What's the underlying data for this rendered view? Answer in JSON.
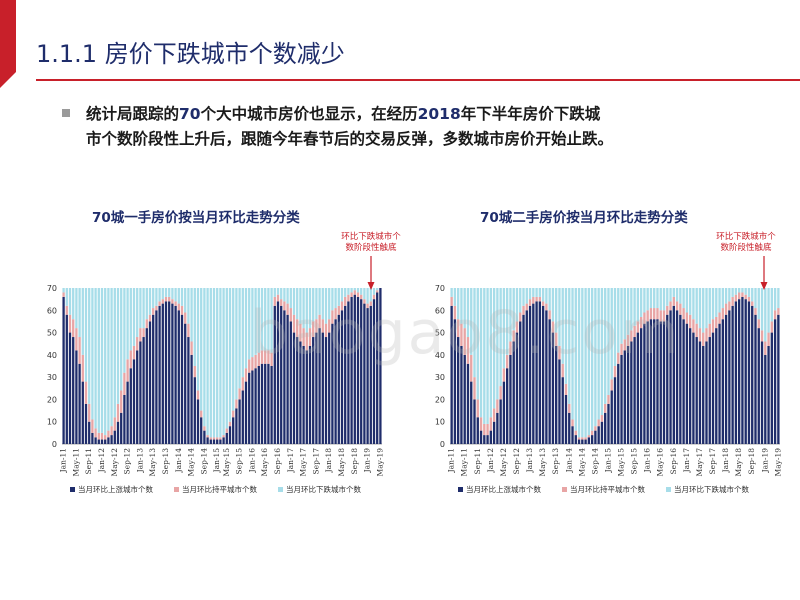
{
  "header": {
    "title": "1.1.1 房价下跌城市个数减少"
  },
  "intro": {
    "line1_pre": "统计局跟踪的",
    "line1_num": "70",
    "line1_mid": "个大中城市房价也显示，在经历",
    "line1_year": "2018",
    "line1_post": "年下半年房价下跌城",
    "line2": "市个数阶段性上升后，跟随今年春节后的交易反弹，多数城市房价开始止跌。"
  },
  "annotation_text": [
    "环比下跌城市个",
    "数阶段性触底"
  ],
  "watermark": "baogao8.com",
  "colors": {
    "up": "#1f2d6b",
    "flat": "#e8a5a5",
    "down": "#a7dde9",
    "title": "#1f2d6b",
    "accent": "#c8202a"
  },
  "chart_data": [
    {
      "type": "bar",
      "stacked": true,
      "title": "70城一手房价按当月环比走势分类",
      "y_ticks": [
        "0",
        "10",
        "20",
        "30",
        "40",
        "50",
        "60",
        "70"
      ],
      "ylim": [
        0,
        70
      ],
      "x_tick_labels": [
        "Jan-11",
        "May-11",
        "Sep-11",
        "Jan-12",
        "May-12",
        "Sep-12",
        "Jan-13",
        "May-13",
        "Sep-13",
        "Jan-14",
        "May-14",
        "Sep-14",
        "Jan-15",
        "May-15",
        "Sep-15",
        "Jan-16",
        "May-16",
        "Sep-16",
        "Jan-17",
        "May-17",
        "Sep-17",
        "Jan-18",
        "May-18",
        "Sep-18",
        "Jan-19",
        "May-19"
      ],
      "series": [
        {
          "name": "当月环比上涨城市个数",
          "key": "up",
          "values": [
            66,
            58,
            50,
            48,
            42,
            36,
            28,
            18,
            10,
            5,
            3,
            2,
            2,
            2,
            3,
            4,
            6,
            10,
            14,
            22,
            28,
            34,
            38,
            42,
            46,
            48,
            52,
            55,
            58,
            60,
            62,
            63,
            64,
            64,
            63,
            62,
            60,
            58,
            54,
            48,
            40,
            30,
            20,
            12,
            6,
            3,
            2,
            2,
            2,
            2,
            3,
            5,
            8,
            12,
            16,
            20,
            24,
            28,
            32,
            33,
            34,
            35,
            36,
            36,
            36,
            35,
            62,
            64,
            62,
            60,
            58,
            55,
            50,
            48,
            46,
            44,
            42,
            44,
            48,
            50,
            52,
            50,
            48,
            50,
            54,
            56,
            58,
            60,
            62,
            64,
            66,
            67,
            66,
            65,
            63,
            61,
            62,
            65,
            68,
            70
          ]
        },
        {
          "name": "当月环比持平城市个数",
          "key": "flat",
          "values": [
            2,
            4,
            8,
            8,
            10,
            12,
            12,
            10,
            8,
            6,
            4,
            3,
            3,
            2,
            3,
            4,
            6,
            8,
            10,
            10,
            10,
            8,
            6,
            6,
            6,
            4,
            4,
            3,
            3,
            2,
            2,
            2,
            2,
            2,
            2,
            2,
            3,
            4,
            5,
            6,
            6,
            5,
            4,
            3,
            2,
            1,
            1,
            1,
            1,
            1,
            1,
            2,
            2,
            3,
            4,
            5,
            6,
            6,
            6,
            6,
            6,
            6,
            6,
            6,
            6,
            6,
            4,
            3,
            3,
            4,
            5,
            6,
            8,
            8,
            8,
            8,
            8,
            8,
            7,
            6,
            6,
            6,
            6,
            6,
            6,
            5,
            4,
            4,
            4,
            3,
            2,
            2,
            2,
            2,
            2,
            2,
            2,
            2,
            1,
            0
          ]
        }
      ],
      "total": 70
    },
    {
      "type": "bar",
      "stacked": true,
      "title": "70城二手房价按当月环比走势分类",
      "y_ticks": [
        "0",
        "10",
        "20",
        "30",
        "40",
        "50",
        "60",
        "70"
      ],
      "ylim": [
        0,
        70
      ],
      "x_tick_labels": [
        "Jan-11",
        "May-11",
        "Sep-11",
        "Jan-12",
        "May-12",
        "Sep-12",
        "Jan-13",
        "May-13",
        "Sep-13",
        "Jan-14",
        "May-14",
        "Sep-14",
        "Jan-15",
        "May-15",
        "Sep-15",
        "Jan-16",
        "May-16",
        "Sep-16",
        "Jan-17",
        "May-17",
        "Sep-17",
        "Jan-18",
        "May-18",
        "Sep-18",
        "Jan-19",
        "May-19"
      ],
      "series": [
        {
          "name": "当月环比上涨城市个数",
          "key": "up",
          "values": [
            62,
            56,
            48,
            44,
            40,
            36,
            28,
            20,
            12,
            6,
            4,
            4,
            6,
            10,
            14,
            20,
            28,
            34,
            40,
            46,
            50,
            55,
            58,
            60,
            62,
            63,
            64,
            64,
            62,
            60,
            56,
            50,
            44,
            38,
            30,
            22,
            14,
            8,
            4,
            2,
            2,
            2,
            3,
            4,
            6,
            8,
            10,
            14,
            18,
            24,
            30,
            36,
            40,
            42,
            44,
            46,
            48,
            50,
            52,
            54,
            55,
            56,
            56,
            56,
            55,
            55,
            58,
            60,
            62,
            60,
            58,
            56,
            54,
            52,
            50,
            48,
            46,
            44,
            46,
            48,
            50,
            52,
            54,
            56,
            58,
            60,
            62,
            64,
            65,
            66,
            65,
            64,
            62,
            58,
            52,
            46,
            40,
            44,
            50,
            56,
            58
          ]
        },
        {
          "name": "当月环比持平城市个数",
          "key": "flat",
          "values": [
            4,
            6,
            8,
            10,
            12,
            12,
            12,
            10,
            8,
            6,
            5,
            5,
            6,
            6,
            6,
            6,
            6,
            6,
            6,
            5,
            5,
            4,
            4,
            3,
            3,
            3,
            2,
            2,
            2,
            3,
            4,
            5,
            6,
            6,
            6,
            5,
            4,
            3,
            2,
            1,
            1,
            1,
            1,
            2,
            2,
            3,
            3,
            4,
            4,
            5,
            5,
            5,
            5,
            5,
            5,
            5,
            5,
            5,
            5,
            5,
            5,
            5,
            5,
            5,
            5,
            5,
            4,
            4,
            4,
            4,
            5,
            5,
            5,
            6,
            6,
            6,
            6,
            6,
            6,
            6,
            6,
            5,
            5,
            5,
            5,
            4,
            4,
            3,
            3,
            2,
            2,
            2,
            2,
            3,
            4,
            5,
            6,
            6,
            5,
            4,
            3
          ]
        }
      ],
      "total": 70
    }
  ],
  "legend_labels": [
    "当月环比上涨城市个数",
    "当月环比持平城市个数",
    "当月环比下跌城市个数"
  ]
}
